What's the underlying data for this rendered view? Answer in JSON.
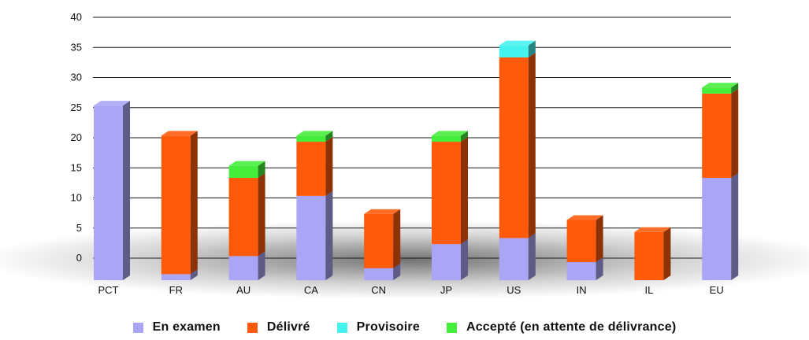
{
  "chart_data": {
    "type": "bar",
    "stacked": true,
    "style": "3d",
    "title": "",
    "xlabel": "",
    "ylabel": "",
    "ylim": [
      0,
      40
    ],
    "yticks": [
      0,
      5,
      10,
      15,
      20,
      25,
      30,
      35,
      40
    ],
    "grid": true,
    "legend_position": "bottom",
    "categories": [
      "PCT",
      "FR",
      "AU",
      "CA",
      "CN",
      "JP",
      "US",
      "IN",
      "IL",
      "EU"
    ],
    "series": [
      {
        "name": "En examen",
        "color": "#aaa5f5",
        "values": [
          29,
          1,
          4,
          14,
          2,
          6,
          7,
          3,
          0,
          17
        ]
      },
      {
        "name": "Délivré",
        "color": "#ff5a0a",
        "values": [
          0,
          23,
          13,
          9,
          9,
          17,
          30,
          7,
          8,
          14
        ]
      },
      {
        "name": "Provisoire",
        "color": "#44f2ee",
        "values": [
          0,
          0,
          0,
          0,
          0,
          0,
          2,
          0,
          0,
          0
        ]
      },
      {
        "name": "Accepté (en attente de délivrance)",
        "color": "#44ee3a",
        "values": [
          0,
          0,
          2,
          1,
          0,
          1,
          0,
          0,
          0,
          1
        ]
      }
    ]
  }
}
